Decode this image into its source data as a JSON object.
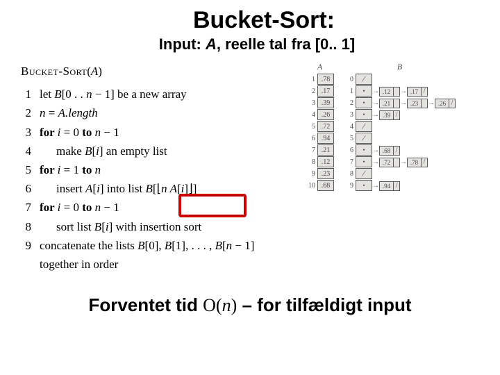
{
  "title": "Bucket-Sort:",
  "subtitle_prefix": "Input: ",
  "subtitle_var": "A",
  "subtitle_mid": ", reelle tal fra ",
  "subtitle_range": "[0.. 1]",
  "fn_name": "Bucket-Sort",
  "fn_arg": "A",
  "lines": {
    "l1_pre": "let ",
    "l1_B": "B",
    "l1_idx": "[0 . . ",
    "l1_n": "n",
    "l1_post": " − 1] be a new array",
    "l2_n": "n",
    "l2_eq": "  =  ",
    "l2_A": "A",
    "l2_len": ".length",
    "l3_for": "for ",
    "l3_i": "i",
    "l3_eq": "  =  0 ",
    "l3_to": "to ",
    "l3_n": "n",
    "l3_m1": " − 1",
    "l4_make": "make ",
    "l4_B": "B",
    "l4_idx": "[",
    "l4_i": "i",
    "l4_post": "] an empty list",
    "l5_for": "for ",
    "l5_i": "i",
    "l5_eq": "  =  1 ",
    "l5_to": "to ",
    "l5_n": "n",
    "l6_ins": "insert ",
    "l6_A": "A",
    "l6_idx1": "[",
    "l6_i": "i",
    "l6_idx2": "] into list ",
    "l6_B": "B",
    "l6_floor": "[⌊",
    "l6_n": "n A",
    "l6_i2": "i",
    "l6_end": "]⌋]",
    "l7_for": "for ",
    "l7_i": "i",
    "l7_eq": "  =  0 ",
    "l7_to": "to ",
    "l7_n": "n",
    "l7_m1": " − 1",
    "l8_sort": "sort list ",
    "l8_B": "B",
    "l8_idx": "[",
    "l8_i": "i",
    "l8_post": "] with insertion sort",
    "l9_pre": "concatenate the lists ",
    "l9_B0": "B",
    "l9_0": "[0], ",
    "l9_B1": "B",
    "l9_1": "[1], . . . , ",
    "l9_Bn": "B",
    "l9_n": "[",
    "l9_nv": "n",
    "l9_end": " − 1] together in order"
  },
  "A_label": "A",
  "B_label": "B",
  "A": [
    {
      "i": "1",
      "v": ".78"
    },
    {
      "i": "2",
      "v": ".17"
    },
    {
      "i": "3",
      "v": ".39"
    },
    {
      "i": "4",
      "v": ".26"
    },
    {
      "i": "5",
      "v": ".72"
    },
    {
      "i": "6",
      "v": ".94"
    },
    {
      "i": "7",
      "v": ".21"
    },
    {
      "i": "8",
      "v": ".12"
    },
    {
      "i": "9",
      "v": ".23"
    },
    {
      "i": "10",
      "v": ".68"
    }
  ],
  "B": [
    {
      "i": "0",
      "chain": []
    },
    {
      "i": "1",
      "chain": [
        ".12",
        ".17"
      ]
    },
    {
      "i": "2",
      "chain": [
        ".21",
        ".23",
        ".26"
      ]
    },
    {
      "i": "3",
      "chain": [
        ".39"
      ]
    },
    {
      "i": "4",
      "chain": []
    },
    {
      "i": "5",
      "chain": []
    },
    {
      "i": "6",
      "chain": [
        ".68"
      ]
    },
    {
      "i": "7",
      "chain": [
        ".72",
        ".78"
      ]
    },
    {
      "i": "8",
      "chain": []
    },
    {
      "i": "9",
      "chain": [
        ".94"
      ]
    }
  ],
  "bottom_pre": "Forventet tid ",
  "bottom_O": "O",
  "bottom_paren_l": "(",
  "bottom_n": "n",
  "bottom_paren_r": ")",
  "bottom_post": " – for tilfældigt input"
}
